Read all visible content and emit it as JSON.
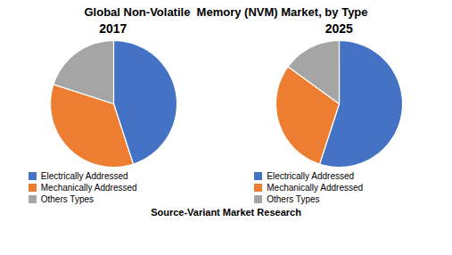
{
  "title": "Global Non-Volatile  Memory (NVM) Market, by Type",
  "caption": "Source-Variant Market Research",
  "chart_data": [
    {
      "type": "pie",
      "title": "2017",
      "categories": [
        "Electrically Addressed",
        "Mechanically Addressed",
        "Others Types"
      ],
      "values": [
        45,
        35,
        20
      ],
      "colors": [
        "#4472C4",
        "#ED7D31",
        "#A5A5A5"
      ],
      "legend": "bottom"
    },
    {
      "type": "pie",
      "title": "2025",
      "categories": [
        "Electrically Addressed",
        "Mechanically Addressed",
        "Others Types"
      ],
      "values": [
        55,
        30,
        15
      ],
      "colors": [
        "#4472C4",
        "#ED7D31",
        "#A5A5A5"
      ],
      "legend": "bottom"
    }
  ]
}
